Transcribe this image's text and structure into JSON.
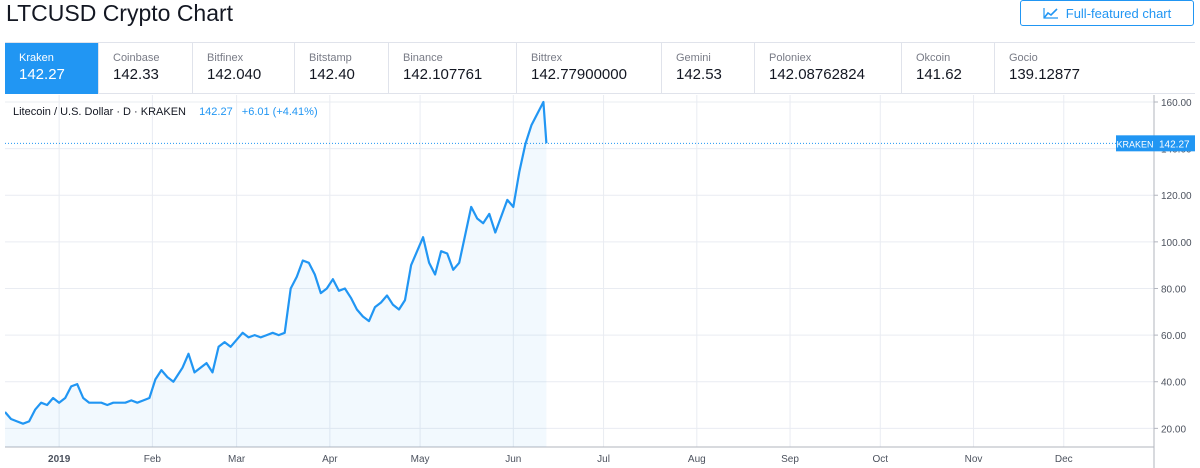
{
  "page": {
    "title": "LTCUSD Crypto Chart",
    "full_chart_label": "Full-featured chart",
    "full_chart_icon": "chart-line-icon"
  },
  "exchanges": [
    {
      "name": "Kraken",
      "price": "142.27",
      "active": true
    },
    {
      "name": "Coinbase",
      "price": "142.33"
    },
    {
      "name": "Bitfinex",
      "price": "142.040"
    },
    {
      "name": "Bitstamp",
      "price": "142.40"
    },
    {
      "name": "Binance",
      "price": "142.107761"
    },
    {
      "name": "Bittrex",
      "price": "142.77900000"
    },
    {
      "name": "Gemini",
      "price": "142.53"
    },
    {
      "name": "Poloniex",
      "price": "142.08762824"
    },
    {
      "name": "Okcoin",
      "price": "141.62"
    },
    {
      "name": "Gocio",
      "price": "139.12877"
    }
  ],
  "legend": {
    "symbol": "Litecoin / U.S. Dollar · D · KRAKEN",
    "value": "142.27",
    "change": "+6.01 (+4.41%)"
  },
  "colors": {
    "accent": "#2196f3",
    "line": "#2196f3",
    "grid": "#e9ecf2",
    "axis_text": "#4c525e"
  },
  "chart_data": {
    "type": "area",
    "title": "Litecoin / U.S. Dollar · D · KRAKEN",
    "xlabel": "",
    "ylabel": "",
    "x_range": [
      "2018-12-14",
      "2019-12-31"
    ],
    "ylim": [
      12,
      163
    ],
    "y_ticks": [
      20,
      40,
      60,
      80,
      100,
      120,
      140,
      160
    ],
    "y_tick_labels": [
      "20.00",
      "40.00",
      "60.00",
      "80.00",
      "100.00",
      "120.00",
      "140.00",
      "160.00"
    ],
    "x_ticks": [
      {
        "date": "2019-01-01",
        "label": "2019"
      },
      {
        "date": "2019-02-01",
        "label": "Feb"
      },
      {
        "date": "2019-03-01",
        "label": "Mar"
      },
      {
        "date": "2019-04-01",
        "label": "Apr"
      },
      {
        "date": "2019-05-01",
        "label": "May"
      },
      {
        "date": "2019-06-01",
        "label": "Jun"
      },
      {
        "date": "2019-07-01",
        "label": "Jul"
      },
      {
        "date": "2019-08-01",
        "label": "Aug"
      },
      {
        "date": "2019-09-01",
        "label": "Sep"
      },
      {
        "date": "2019-10-01",
        "label": "Oct"
      },
      {
        "date": "2019-11-01",
        "label": "Nov"
      },
      {
        "date": "2019-12-01",
        "label": "Dec"
      }
    ],
    "grid": true,
    "last_price": {
      "value": 142.27,
      "label": "KRAKEN",
      "value_label": "142.27"
    },
    "series": [
      {
        "x": [
          "2018-12-14",
          "2018-12-16",
          "2018-12-18",
          "2018-12-20",
          "2018-12-22",
          "2018-12-24",
          "2018-12-26",
          "2018-12-28",
          "2018-12-30",
          "2019-01-01",
          "2019-01-03",
          "2019-01-05",
          "2019-01-07",
          "2019-01-09",
          "2019-01-11",
          "2019-01-13",
          "2019-01-15",
          "2019-01-17",
          "2019-01-19",
          "2019-01-21",
          "2019-01-23",
          "2019-01-25",
          "2019-01-27",
          "2019-01-29",
          "2019-01-31",
          "2019-02-02",
          "2019-02-04",
          "2019-02-06",
          "2019-02-08",
          "2019-02-09",
          "2019-02-11",
          "2019-02-13",
          "2019-02-15",
          "2019-02-17",
          "2019-02-19",
          "2019-02-21",
          "2019-02-23",
          "2019-02-25",
          "2019-02-27",
          "2019-03-01",
          "2019-03-03",
          "2019-03-05",
          "2019-03-07",
          "2019-03-09",
          "2019-03-11",
          "2019-03-13",
          "2019-03-15",
          "2019-03-17",
          "2019-03-19",
          "2019-03-21",
          "2019-03-23",
          "2019-03-25",
          "2019-03-27",
          "2019-03-29",
          "2019-03-31",
          "2019-04-02",
          "2019-04-04",
          "2019-04-06",
          "2019-04-08",
          "2019-04-10",
          "2019-04-12",
          "2019-04-14",
          "2019-04-16",
          "2019-04-18",
          "2019-04-20",
          "2019-04-22",
          "2019-04-24",
          "2019-04-26",
          "2019-04-28",
          "2019-04-30",
          "2019-05-02",
          "2019-05-04",
          "2019-05-06",
          "2019-05-08",
          "2019-05-10",
          "2019-05-12",
          "2019-05-14",
          "2019-05-16",
          "2019-05-18",
          "2019-05-20",
          "2019-05-22",
          "2019-05-24",
          "2019-05-26",
          "2019-05-28",
          "2019-05-30",
          "2019-06-01",
          "2019-06-03",
          "2019-06-05",
          "2019-06-07",
          "2019-06-09",
          "2019-06-11",
          "2019-06-12"
        ],
        "y": [
          27,
          24,
          23,
          22,
          23,
          28,
          31,
          30,
          33,
          31,
          33,
          38,
          39,
          33,
          31,
          31,
          31,
          30,
          31,
          31,
          31,
          32,
          31,
          32,
          33,
          41,
          45,
          42,
          40,
          42,
          46,
          52,
          44,
          46,
          48,
          44,
          55,
          57,
          55,
          58,
          61,
          59,
          60,
          59,
          60,
          61,
          60,
          61,
          80,
          85,
          92,
          91,
          86,
          78,
          80,
          84,
          79,
          80,
          76,
          71,
          68,
          66,
          72,
          74,
          77,
          73,
          71,
          75,
          90,
          96,
          102,
          91,
          86,
          96,
          95,
          88,
          91,
          103,
          115,
          110,
          108,
          112,
          104,
          111,
          118,
          115,
          130,
          142,
          150,
          155,
          160,
          142.27
        ]
      }
    ]
  }
}
